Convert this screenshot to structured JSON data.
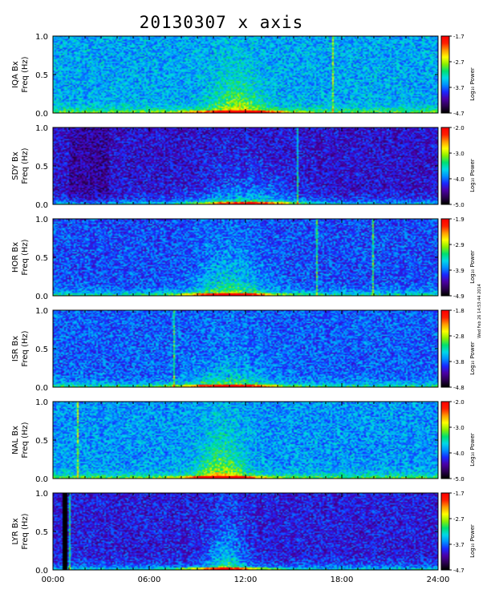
{
  "chart_data": {
    "type": "heatmap",
    "title": "20130307 x axis",
    "side_note": "Wed Feb 26 14:53:44 2014",
    "x_axis": {
      "range_hours": [
        0,
        24
      ],
      "tick_labels": [
        "00:00",
        "06:00",
        "12:00",
        "18:00",
        "24:00"
      ],
      "tick_values_hours": [
        0,
        6,
        12,
        18,
        24
      ]
    },
    "y_axis": {
      "label": "Freq (Hz)",
      "range": [
        0.0,
        1.0
      ],
      "tick_labels": [
        "0.0",
        "0.5",
        "1.0"
      ],
      "tick_values": [
        0.0,
        0.5,
        1.0
      ]
    },
    "colorbar_label": "Log₁₀ Power",
    "colormap": [
      "#000000",
      "#2d0054",
      "#4b00a8",
      "#1a28ff",
      "#0090ff",
      "#00d8e8",
      "#00e070",
      "#8cf000",
      "#ffff00",
      "#ff9c00",
      "#ff2000",
      "#ff0000"
    ],
    "panels": [
      {
        "station": "IQA Bx",
        "colorbar_ticks": [
          "-1.7",
          "-2.7",
          "-3.7",
          "-4.7"
        ],
        "clim": [
          -4.7,
          -1.7
        ]
      },
      {
        "station": "SDY Bx",
        "colorbar_ticks": [
          "-2.0",
          "-3.0",
          "-4.0",
          "-5.0"
        ],
        "clim": [
          -5.0,
          -2.0
        ]
      },
      {
        "station": "HOR Bx",
        "colorbar_ticks": [
          "-1.9",
          "-2.9",
          "-3.9",
          "-4.9"
        ],
        "clim": [
          -4.9,
          -1.9
        ]
      },
      {
        "station": "ISR Bx",
        "colorbar_ticks": [
          "-1.8",
          "-2.8",
          "-3.8",
          "-4.8"
        ],
        "clim": [
          -4.8,
          -1.8
        ]
      },
      {
        "station": "NAL Bx",
        "colorbar_ticks": [
          "-2.0",
          "-3.0",
          "-4.0",
          "-5.0"
        ],
        "clim": [
          -5.0,
          -2.0
        ]
      },
      {
        "station": "LYR Bx",
        "colorbar_ticks": [
          "-1.7",
          "-2.7",
          "-3.7",
          "-4.7"
        ],
        "clim": [
          -4.7,
          -1.7
        ]
      }
    ]
  }
}
